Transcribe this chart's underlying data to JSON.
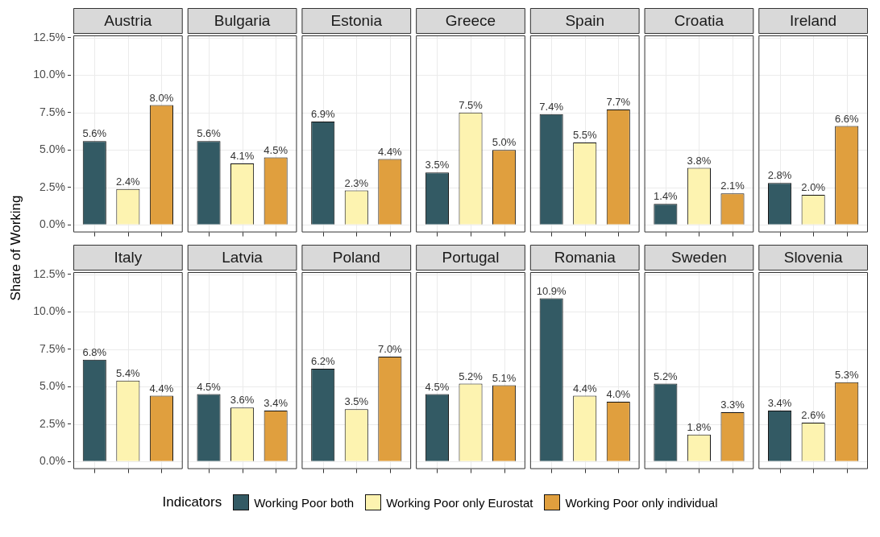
{
  "chart_data": [
    {
      "type": "bar",
      "categories": [
        "Austria",
        "Bulgaria",
        "Estonia",
        "Greece",
        "Spain",
        "Croatia",
        "Ireland"
      ],
      "ylim": [
        -0.5,
        12.65
      ],
      "yticks": [
        {
          "value": 0,
          "label": "0.0%"
        },
        {
          "value": 2.5,
          "label": "2.5%"
        },
        {
          "value": 5,
          "label": "5.0%"
        },
        {
          "value": 7.5,
          "label": "7.5%"
        },
        {
          "value": 10,
          "label": "10.0%"
        },
        {
          "value": 12.5,
          "label": "12.5%"
        }
      ],
      "grid": true,
      "series": [
        {
          "color": "#335a64",
          "values": [
            5.6,
            5.6,
            6.9,
            3.5,
            7.4,
            1.4,
            2.8
          ],
          "value_labels": [
            "5.6%",
            "5.6%",
            "6.9%",
            "3.5%",
            "7.4%",
            "1.4%",
            "2.8%"
          ]
        },
        {
          "color": "#fdf3b0",
          "values": [
            2.4,
            4.1,
            2.3,
            7.5,
            5.5,
            3.8,
            2.0
          ],
          "value_labels": [
            "2.4%",
            "4.1%",
            "2.3%",
            "7.5%",
            "5.5%",
            "3.8%",
            "2.0%"
          ]
        },
        {
          "color": "#e09f3e",
          "values": [
            8.0,
            4.5,
            4.4,
            5.0,
            7.7,
            2.1,
            6.6
          ],
          "value_labels": [
            "8.0%",
            "4.5%",
            "4.4%",
            "5.0%",
            "7.7%",
            "2.1%",
            "6.6%"
          ]
        }
      ]
    },
    {
      "type": "bar",
      "ylabel": "Share of Working",
      "categories": [
        "Italy",
        "Latvia",
        "Poland",
        "Portugal",
        "Romania",
        "Sweden",
        "Slovenia"
      ],
      "ylim": [
        -0.5,
        12.65
      ],
      "yticks": [
        {
          "value": 0,
          "label": "0.0%"
        },
        {
          "value": 2.5,
          "label": "2.5%"
        },
        {
          "value": 5,
          "label": "5.0%"
        },
        {
          "value": 7.5,
          "label": "7.5%"
        },
        {
          "value": 10,
          "label": "10.0%"
        },
        {
          "value": 12.5,
          "label": "12.5%"
        }
      ],
      "grid": true,
      "legend": "bottom",
      "legend_title": "Indicators",
      "series": [
        {
          "name": "Working Poor both",
          "color": "#335a64",
          "values": [
            6.8,
            4.5,
            6.2,
            4.5,
            10.9,
            5.2,
            3.4
          ],
          "value_labels": [
            "6.8%",
            "4.5%",
            "6.2%",
            "4.5%",
            "10.9%",
            "5.2%",
            "3.4%"
          ]
        },
        {
          "name": "Working Poor only Eurostat",
          "color": "#fdf3b0",
          "values": [
            5.4,
            3.6,
            3.5,
            5.2,
            4.4,
            1.8,
            2.6
          ],
          "value_labels": [
            "5.4%",
            "3.6%",
            "3.5%",
            "5.2%",
            "4.4%",
            "1.8%",
            "2.6%"
          ]
        },
        {
          "name": "Working Poor only individual",
          "color": "#e09f3e",
          "values": [
            4.4,
            3.4,
            7.0,
            5.1,
            4.0,
            3.3,
            5.3
          ],
          "value_labels": [
            "4.4%",
            "3.4%",
            "7.0%",
            "5.1%",
            "4.0%",
            "3.3%",
            "5.3%"
          ]
        }
      ]
    }
  ]
}
